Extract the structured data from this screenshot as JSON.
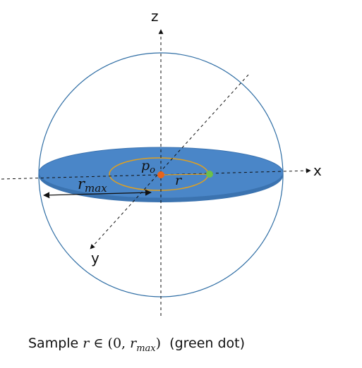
{
  "axes": {
    "z_label": "z",
    "x_label": "x",
    "y_label": "y"
  },
  "labels": {
    "center_point": "p",
    "center_point_sub": "o",
    "radius": "r",
    "max_radius": "r",
    "max_radius_sub": "max"
  },
  "caption": {
    "prefix": "Sample ",
    "var": "r",
    "member": " ∈ ",
    "open": "(",
    "zero": "0",
    "comma": ", ",
    "rmax": "r",
    "rmax_sub": "max",
    "close": ")",
    "suffix": "  (green dot)"
  },
  "colors": {
    "sphere": "#2e6da4",
    "disk_fill": "#4a86c8",
    "disk_edge": "#3b73b0",
    "inner_circle": "#e0a020",
    "center_dot": "#e8641c",
    "sample_dot": "#6cc04a",
    "axis": "#111111"
  }
}
